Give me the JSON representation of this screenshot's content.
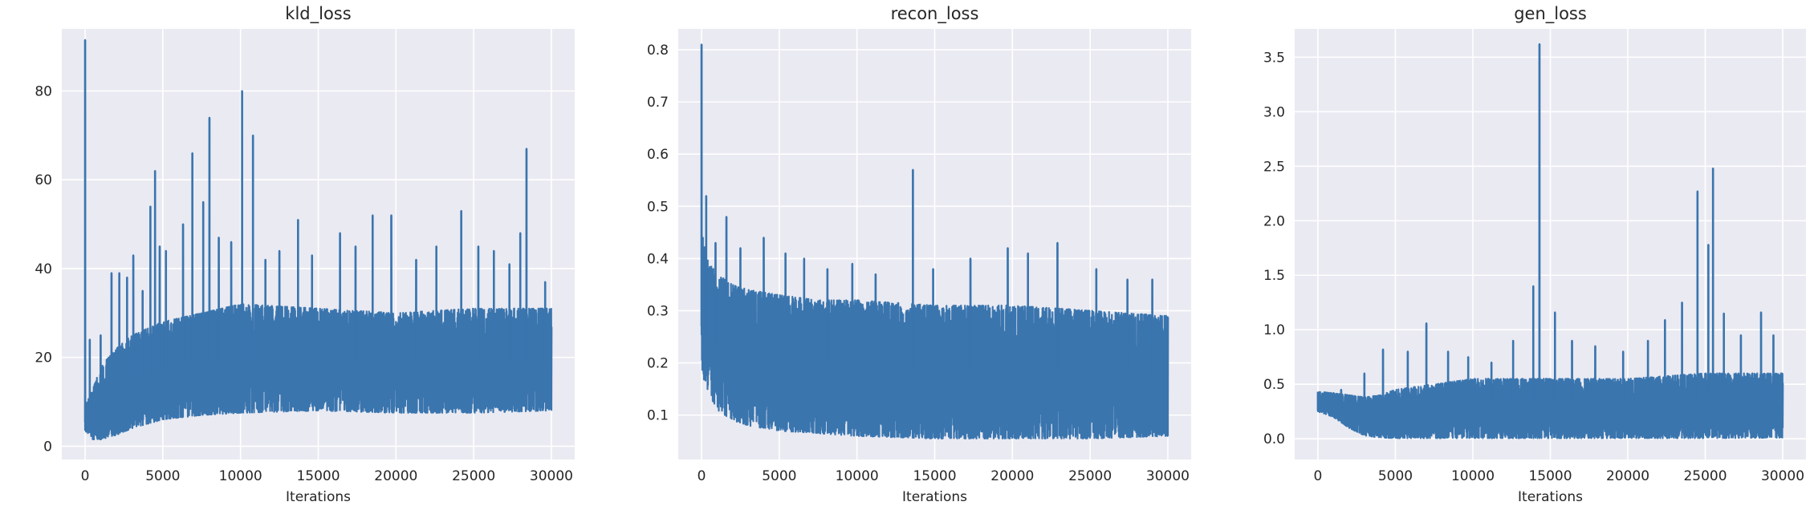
{
  "chart_data": [
    {
      "type": "line",
      "title": "kld_loss",
      "xlabel": "Iterations",
      "ylabel": "",
      "xlim": [
        -1500,
        31500
      ],
      "ylim": [
        -3,
        94
      ],
      "xticks": [
        0,
        5000,
        10000,
        15000,
        20000,
        25000,
        30000
      ],
      "yticks": [
        0,
        20,
        40,
        60,
        80
      ],
      "xtick_labels": [
        "0",
        "5000",
        "10000",
        "15000",
        "20000",
        "25000",
        "30000"
      ],
      "ytick_labels": [
        "0",
        "20",
        "40",
        "60",
        "80"
      ],
      "grid": true,
      "series": [
        {
          "color": "#3a75ae",
          "band_x": [
            0,
            500,
            1000,
            2000,
            3000,
            5000,
            7500,
            10000,
            15000,
            20000,
            25000,
            30000
          ],
          "band_low": [
            3.5,
            1.5,
            1.5,
            2.5,
            4,
            6,
            7,
            7.5,
            8,
            7.5,
            7.5,
            8
          ],
          "band_high": [
            9,
            13,
            18,
            22,
            25,
            28,
            30,
            32,
            31,
            30,
            31,
            31
          ],
          "spikes_x": [
            0,
            300,
            1000,
            1700,
            2200,
            2700,
            3100,
            3700,
            4200,
            4500,
            4800,
            5200,
            6300,
            6900,
            7600,
            8000,
            8600,
            9400,
            10100,
            10800,
            11600,
            12500,
            13700,
            14600,
            16400,
            17400,
            18500,
            19700,
            21300,
            22600,
            24200,
            25300,
            26300,
            27300,
            28000,
            28400,
            29600
          ],
          "spikes_y": [
            91.5,
            24,
            25,
            39,
            39,
            38,
            43,
            35,
            54,
            62,
            45,
            44,
            50,
            66,
            55,
            74,
            47,
            46,
            80,
            70,
            42,
            44,
            51,
            43,
            48,
            45,
            52,
            52,
            42,
            45,
            53,
            45,
            44,
            41,
            48,
            67,
            37
          ]
        }
      ]
    },
    {
      "type": "line",
      "title": "recon_loss",
      "xlabel": "Iterations",
      "ylabel": "",
      "xlim": [
        -1500,
        31500
      ],
      "ylim": [
        0.015,
        0.84
      ],
      "xticks": [
        0,
        5000,
        10000,
        15000,
        20000,
        25000,
        30000
      ],
      "yticks": [
        0.1,
        0.2,
        0.3,
        0.4,
        0.5,
        0.6,
        0.7,
        0.8
      ],
      "xtick_labels": [
        "0",
        "5000",
        "10000",
        "15000",
        "20000",
        "25000",
        "30000"
      ],
      "ytick_labels": [
        "0.1",
        "0.2",
        "0.3",
        "0.4",
        "0.5",
        "0.6",
        "0.7",
        "0.8"
      ],
      "grid": true,
      "series": [
        {
          "color": "#3a75ae",
          "band_x": [
            0,
            500,
            1000,
            2000,
            3000,
            5000,
            7500,
            10000,
            15000,
            20000,
            25000,
            30000
          ],
          "band_low": [
            0.18,
            0.14,
            0.11,
            0.09,
            0.08,
            0.07,
            0.065,
            0.06,
            0.055,
            0.055,
            0.055,
            0.06
          ],
          "band_high": [
            0.45,
            0.39,
            0.37,
            0.35,
            0.34,
            0.33,
            0.32,
            0.32,
            0.31,
            0.31,
            0.3,
            0.29
          ],
          "spikes_x": [
            0,
            300,
            900,
            1600,
            2500,
            4000,
            5400,
            6600,
            8100,
            9700,
            11200,
            13600,
            14900,
            17300,
            19700,
            21000,
            22900,
            25400,
            27400,
            29000
          ],
          "spikes_y": [
            0.81,
            0.52,
            0.43,
            0.48,
            0.42,
            0.44,
            0.41,
            0.4,
            0.38,
            0.39,
            0.37,
            0.57,
            0.38,
            0.4,
            0.42,
            0.41,
            0.43,
            0.38,
            0.36,
            0.36
          ]
        }
      ]
    },
    {
      "type": "line",
      "title": "gen_loss",
      "xlabel": "Iterations",
      "ylabel": "",
      "xlim": [
        -1500,
        31500
      ],
      "ylim": [
        -0.19,
        3.76
      ],
      "xticks": [
        0,
        5000,
        10000,
        15000,
        20000,
        25000,
        30000
      ],
      "yticks": [
        0.0,
        0.5,
        1.0,
        1.5,
        2.0,
        2.5,
        3.0,
        3.5
      ],
      "xtick_labels": [
        "0",
        "5000",
        "10000",
        "15000",
        "20000",
        "25000",
        "30000"
      ],
      "ytick_labels": [
        "0.0",
        "0.5",
        "1.0",
        "1.5",
        "2.0",
        "2.5",
        "3.0",
        "3.5"
      ],
      "grid": true,
      "series": [
        {
          "color": "#3a75ae",
          "band_x": [
            0,
            1000,
            2000,
            3000,
            4000,
            5000,
            7500,
            10000,
            15000,
            20000,
            25000,
            30000
          ],
          "band_low": [
            0.25,
            0.2,
            0.1,
            0.03,
            0.01,
            0.005,
            0.005,
            0.005,
            0.005,
            0.005,
            0.005,
            0.01
          ],
          "band_high": [
            0.43,
            0.42,
            0.4,
            0.38,
            0.4,
            0.45,
            0.5,
            0.55,
            0.55,
            0.55,
            0.6,
            0.6
          ],
          "spikes_x": [
            0,
            1500,
            3000,
            4200,
            5800,
            7000,
            8400,
            9700,
            11200,
            12600,
            13900,
            14300,
            15300,
            16400,
            17900,
            19700,
            21300,
            22400,
            23500,
            24500,
            25200,
            25500,
            26200,
            27300,
            28600,
            29400
          ],
          "spikes_y": [
            0.43,
            0.45,
            0.6,
            0.82,
            0.8,
            1.06,
            0.8,
            0.75,
            0.7,
            0.9,
            1.4,
            3.62,
            1.16,
            0.9,
            0.85,
            0.8,
            0.9,
            1.09,
            1.25,
            2.27,
            1.78,
            2.48,
            1.15,
            0.95,
            1.16,
            0.95
          ]
        }
      ]
    }
  ]
}
